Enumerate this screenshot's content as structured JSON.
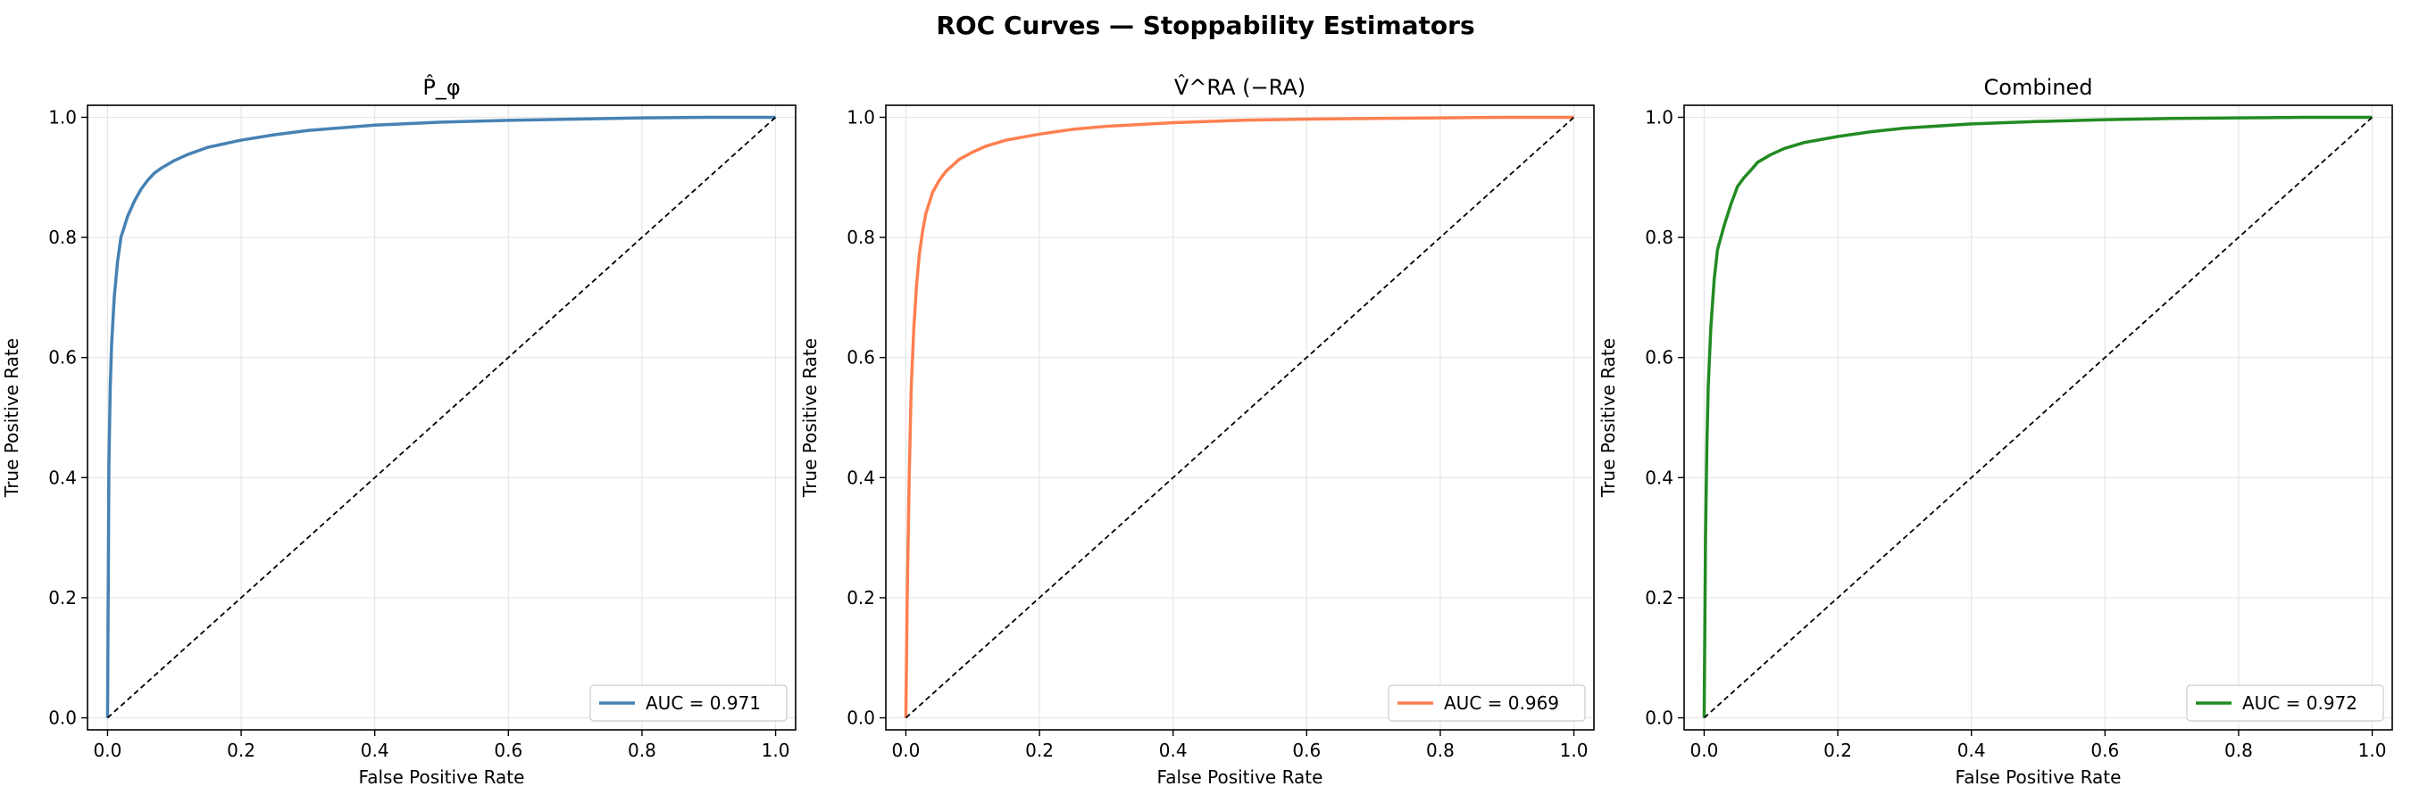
{
  "figure": {
    "suptitle": "ROC Curves — Stoppability Estimators"
  },
  "chart_data": [
    {
      "type": "line",
      "title": "P̂_φ",
      "xlabel": "False Positive Rate",
      "ylabel": "True Positive Rate",
      "xlim": [
        -0.03,
        1.03
      ],
      "ylim": [
        -0.02,
        1.02
      ],
      "xticks": [
        "0.0",
        "0.2",
        "0.4",
        "0.6",
        "0.8",
        "1.0"
      ],
      "yticks": [
        "0.0",
        "0.2",
        "0.4",
        "0.6",
        "0.8",
        "1.0"
      ],
      "grid": true,
      "legend_position": "lower-right",
      "series": [
        {
          "name": "AUC = 0.971",
          "color": "#4682b4",
          "x": [
            0,
            0.002,
            0.004,
            0.006,
            0.01,
            0.015,
            0.02,
            0.03,
            0.04,
            0.05,
            0.06,
            0.07,
            0.08,
            0.1,
            0.12,
            0.15,
            0.2,
            0.25,
            0.3,
            0.4,
            0.5,
            0.6,
            0.7,
            0.8,
            0.9,
            1.0
          ],
          "y": [
            0,
            0.42,
            0.55,
            0.62,
            0.7,
            0.76,
            0.8,
            0.835,
            0.86,
            0.88,
            0.895,
            0.907,
            0.915,
            0.928,
            0.938,
            0.95,
            0.962,
            0.971,
            0.978,
            0.987,
            0.992,
            0.995,
            0.997,
            0.999,
            1.0,
            1.0
          ]
        },
        {
          "name": "chance",
          "color": "#000000",
          "x": [
            0,
            1
          ],
          "y": [
            0,
            1
          ],
          "dashed": true
        }
      ]
    },
    {
      "type": "line",
      "title": "V̂^RA (−RA)",
      "xlabel": "False Positive Rate",
      "ylabel": "True Positive Rate",
      "xlim": [
        -0.03,
        1.03
      ],
      "ylim": [
        -0.02,
        1.02
      ],
      "xticks": [
        "0.0",
        "0.2",
        "0.4",
        "0.6",
        "0.8",
        "1.0"
      ],
      "yticks": [
        "0.0",
        "0.2",
        "0.4",
        "0.6",
        "0.8",
        "1.0"
      ],
      "grid": true,
      "legend_position": "lower-right",
      "series": [
        {
          "name": "AUC = 0.969",
          "color": "#ff7f50",
          "x": [
            0,
            0.002,
            0.005,
            0.008,
            0.012,
            0.016,
            0.02,
            0.025,
            0.03,
            0.04,
            0.05,
            0.06,
            0.07,
            0.08,
            0.1,
            0.12,
            0.15,
            0.2,
            0.25,
            0.3,
            0.4,
            0.5,
            0.6,
            0.7,
            0.8,
            0.9,
            1.0
          ],
          "y": [
            0,
            0.2,
            0.4,
            0.55,
            0.65,
            0.72,
            0.77,
            0.81,
            0.84,
            0.875,
            0.895,
            0.91,
            0.92,
            0.93,
            0.942,
            0.952,
            0.962,
            0.972,
            0.98,
            0.985,
            0.991,
            0.995,
            0.997,
            0.998,
            0.999,
            1.0,
            1.0
          ]
        },
        {
          "name": "chance",
          "color": "#000000",
          "x": [
            0,
            1
          ],
          "y": [
            0,
            1
          ],
          "dashed": true
        }
      ]
    },
    {
      "type": "line",
      "title": "Combined",
      "xlabel": "False Positive Rate",
      "ylabel": "True Positive Rate",
      "xlim": [
        -0.03,
        1.03
      ],
      "ylim": [
        -0.02,
        1.02
      ],
      "xticks": [
        "0.0",
        "0.2",
        "0.4",
        "0.6",
        "0.8",
        "1.0"
      ],
      "yticks": [
        "0.0",
        "0.2",
        "0.4",
        "0.6",
        "0.8",
        "1.0"
      ],
      "grid": true,
      "legend_position": "lower-right",
      "series": [
        {
          "name": "AUC = 0.972",
          "color": "#228b22",
          "x": [
            0,
            0.002,
            0.004,
            0.006,
            0.01,
            0.015,
            0.02,
            0.03,
            0.04,
            0.05,
            0.06,
            0.07,
            0.08,
            0.1,
            0.12,
            0.15,
            0.2,
            0.25,
            0.3,
            0.4,
            0.5,
            0.6,
            0.7,
            0.8,
            0.9,
            1.0
          ],
          "y": [
            0,
            0.3,
            0.45,
            0.55,
            0.65,
            0.73,
            0.78,
            0.82,
            0.855,
            0.885,
            0.9,
            0.912,
            0.925,
            0.938,
            0.948,
            0.958,
            0.968,
            0.976,
            0.982,
            0.989,
            0.993,
            0.996,
            0.998,
            0.999,
            1.0,
            1.0
          ]
        },
        {
          "name": "chance",
          "color": "#000000",
          "x": [
            0,
            1
          ],
          "y": [
            0,
            1
          ],
          "dashed": true
        }
      ]
    }
  ]
}
